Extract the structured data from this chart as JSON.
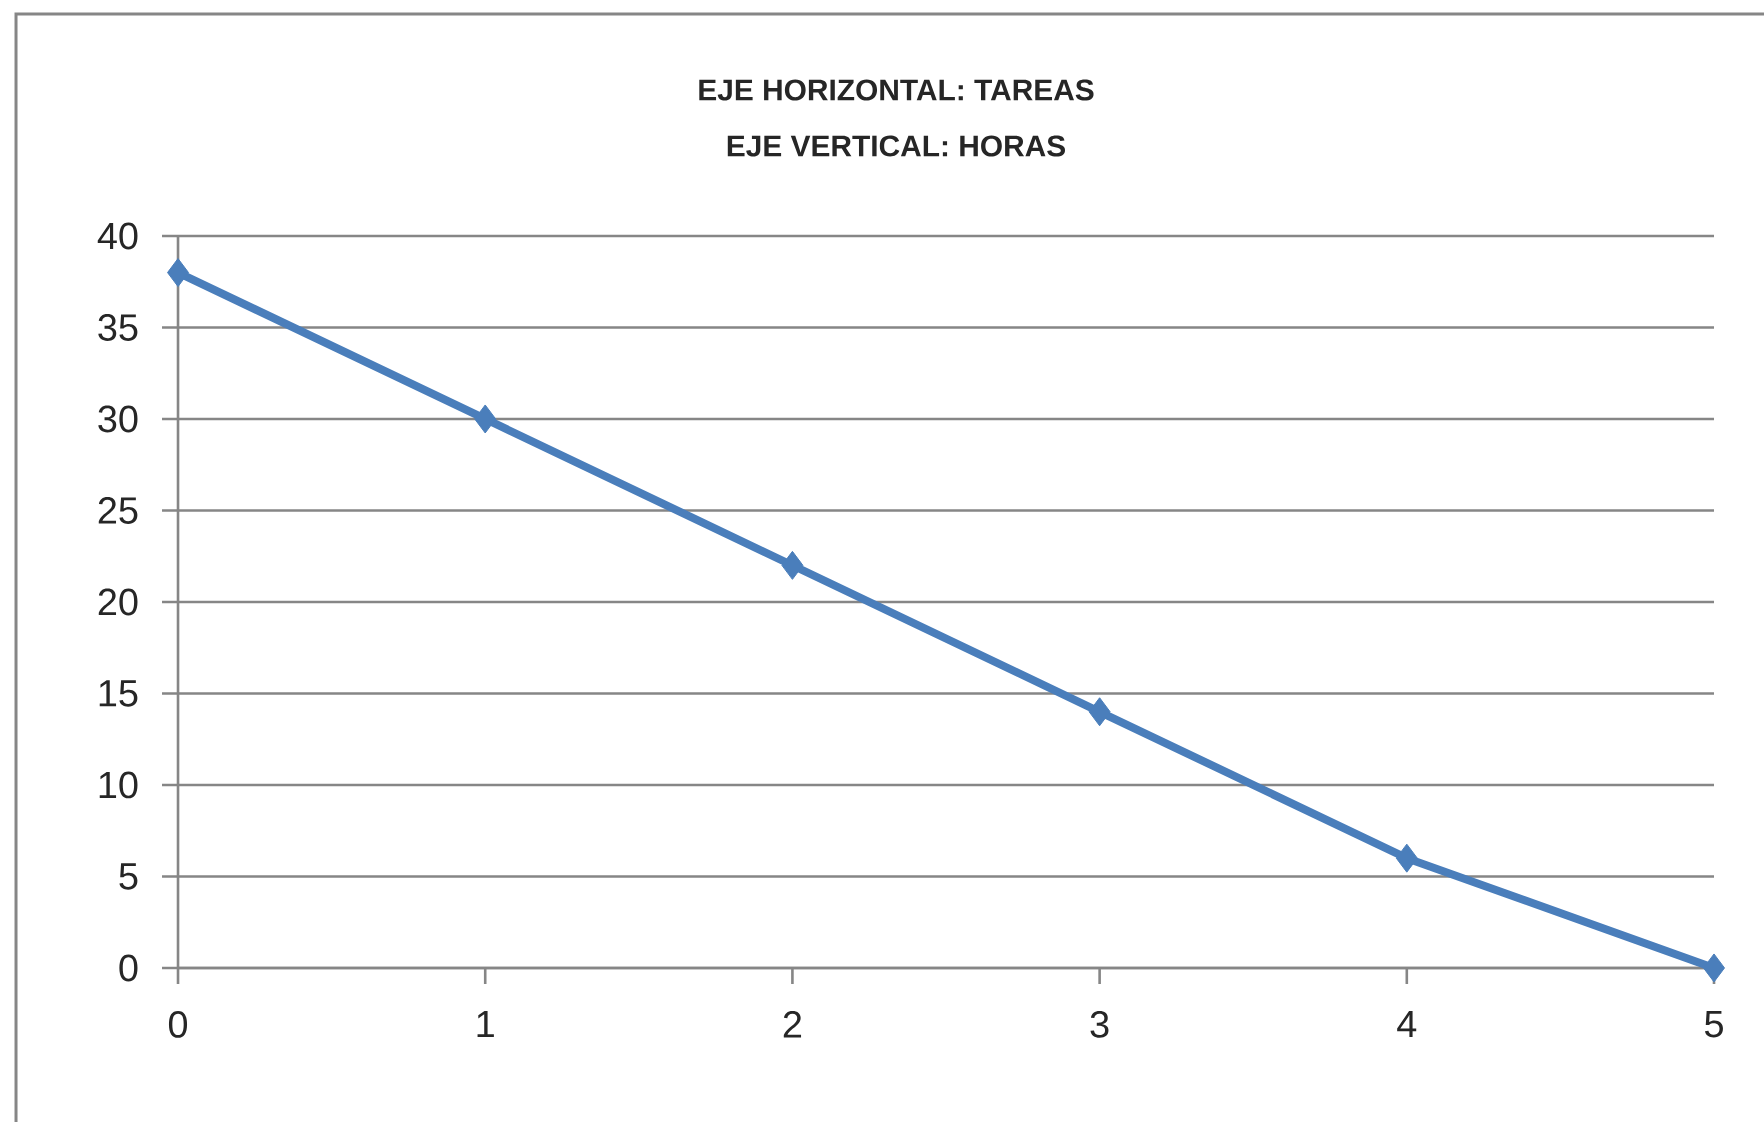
{
  "chart_data": {
    "type": "line",
    "title": "EJE HORIZONTAL: TAREAS",
    "subtitle": "EJE VERTICAL: HORAS",
    "x": [
      0,
      1,
      2,
      3,
      4,
      5
    ],
    "values": [
      38,
      30,
      22,
      14,
      6,
      0
    ],
    "color": "#4a7ebb",
    "xlim": [
      0,
      5
    ],
    "ylim": [
      0,
      40
    ],
    "xticks": [
      0,
      1,
      2,
      3,
      4,
      5
    ],
    "yticks": [
      0,
      5,
      10,
      15,
      20,
      25,
      30,
      35,
      40
    ],
    "grid": "y",
    "marker": "diamond",
    "line_style": "solid"
  }
}
